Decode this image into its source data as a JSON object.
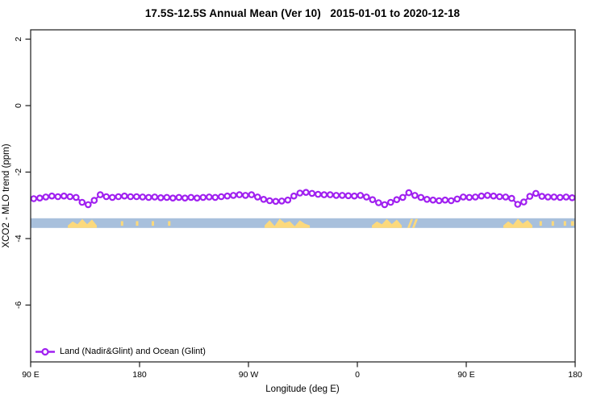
{
  "title": "17.5S-12.5S Annual Mean (Ver 10)   2015-01-01 to 2020-12-18",
  "axes": {
    "x_label": "Longitude (deg E)",
    "y_label": "XCO2 - MLO trend (ppm)"
  },
  "legend": {
    "label": "Land (Nadir&Glint) and Ocean (Glint)",
    "symbol": "open-circle-on-line",
    "color": "#a020f0"
  },
  "colors": {
    "series": "#a020f0",
    "marker_fill": "#ffffff",
    "ocean_band": "#a8c0dc",
    "land_band": "#fcd97c",
    "axis": "#1a1a1a",
    "background": "#ffffff"
  },
  "chart_data": {
    "type": "line",
    "title": "17.5S-12.5S Annual Mean (Ver 10)   2015-01-01 to 2020-12-18",
    "xlabel": "Longitude (deg E)",
    "ylabel": "XCO2 - MLO trend (ppm)",
    "xlim": [
      90,
      540
    ],
    "ylim": [
      -7.71,
      2.28
    ],
    "grid": false,
    "legend_position": "bottom-left-inside",
    "x_axis_note": "longitude axis wraps: 90E to 180, 90W, 0, 90E, 180",
    "x_ticks": [
      {
        "pos": 90,
        "label": "90 E"
      },
      {
        "pos": 180,
        "label": "180"
      },
      {
        "pos": 270,
        "label": "90 W"
      },
      {
        "pos": 360,
        "label": "0"
      },
      {
        "pos": 450,
        "label": "90 E"
      },
      {
        "pos": 540,
        "label": "180"
      }
    ],
    "y_ticks": [
      {
        "pos": 2,
        "label": "2"
      },
      {
        "pos": 0,
        "label": "0"
      },
      {
        "pos": -2,
        "label": "-2"
      },
      {
        "pos": -4,
        "label": "-4"
      },
      {
        "pos": -6,
        "label": "-6"
      }
    ],
    "series": [
      {
        "name": "Land (Nadir&Glint) and Ocean (Glint)",
        "color": "#a020f0",
        "marker": "open-circle",
        "x_start_deg": 92.5,
        "x_step_deg": 5,
        "x_deg": [
          92.5,
          97.5,
          102.5,
          107.5,
          112.5,
          117.5,
          122.5,
          127.5,
          132.5,
          137.5,
          142.5,
          147.5,
          152.5,
          157.5,
          162.5,
          167.5,
          172.5,
          177.5,
          182.5,
          187.5,
          192.5,
          197.5,
          202.5,
          207.5,
          212.5,
          217.5,
          222.5,
          227.5,
          232.5,
          237.5,
          242.5,
          247.5,
          252.5,
          257.5,
          262.5,
          267.5,
          272.5,
          277.5,
          282.5,
          287.5,
          292.5,
          297.5,
          302.5,
          307.5,
          312.5,
          317.5,
          322.5,
          327.5,
          332.5,
          337.5,
          342.5,
          347.5,
          352.5,
          357.5,
          362.5,
          367.5,
          372.5,
          377.5,
          382.5,
          387.5,
          392.5,
          397.5,
          402.5,
          407.5,
          412.5,
          417.5,
          422.5,
          427.5,
          432.5,
          437.5,
          442.5,
          447.5,
          452.5,
          457.5,
          462.5,
          467.5,
          472.5,
          477.5,
          482.5,
          487.5,
          492.5,
          497.5,
          502.5,
          507.5,
          512.5,
          517.5,
          522.5,
          527.5,
          532.5,
          537.5
        ],
        "values": [
          -2.8,
          -2.78,
          -2.75,
          -2.72,
          -2.74,
          -2.72,
          -2.74,
          -2.76,
          -2.91,
          -2.98,
          -2.85,
          -2.68,
          -2.74,
          -2.76,
          -2.74,
          -2.72,
          -2.74,
          -2.74,
          -2.75,
          -2.76,
          -2.75,
          -2.77,
          -2.76,
          -2.78,
          -2.76,
          -2.78,
          -2.76,
          -2.78,
          -2.76,
          -2.75,
          -2.76,
          -2.74,
          -2.72,
          -2.7,
          -2.68,
          -2.7,
          -2.68,
          -2.75,
          -2.82,
          -2.86,
          -2.88,
          -2.87,
          -2.84,
          -2.72,
          -2.63,
          -2.61,
          -2.64,
          -2.67,
          -2.68,
          -2.68,
          -2.7,
          -2.7,
          -2.71,
          -2.72,
          -2.7,
          -2.75,
          -2.83,
          -2.92,
          -2.98,
          -2.91,
          -2.83,
          -2.76,
          -2.62,
          -2.7,
          -2.76,
          -2.82,
          -2.84,
          -2.86,
          -2.84,
          -2.86,
          -2.81,
          -2.75,
          -2.76,
          -2.75,
          -2.72,
          -2.7,
          -2.72,
          -2.74,
          -2.75,
          -2.79,
          -2.97,
          -2.9,
          -2.73,
          -2.64,
          -2.73,
          -2.75,
          -2.75,
          -2.76,
          -2.75,
          -2.77
        ]
      }
    ],
    "map_band": {
      "description": "land/ocean strip for latitude band 17.5S-12.5S",
      "ppm_top": -3.39,
      "ppm_bottom": -3.68,
      "ocean_color": "#a8c0dc",
      "land_color": "#fcd97c",
      "land_segments": [
        {
          "from": 120.7,
          "to": 144.7,
          "style": "jagged",
          "name": "australia"
        },
        {
          "from": 164.5,
          "to": 166.5,
          "style": "speck"
        },
        {
          "from": 177.0,
          "to": 179.0,
          "style": "speck"
        },
        {
          "from": 190.0,
          "to": 192.0,
          "style": "speck"
        },
        {
          "from": 203.5,
          "to": 205.5,
          "style": "speck"
        },
        {
          "from": 283.3,
          "to": 320.7,
          "style": "jagged",
          "name": "south-america"
        },
        {
          "from": 372.0,
          "to": 396.7,
          "style": "jagged",
          "name": "africa"
        },
        {
          "from": 401.3,
          "to": 410.0,
          "style": "slash",
          "name": "madagascar"
        },
        {
          "from": 480.7,
          "to": 504.7,
          "style": "jagged",
          "name": "australia-repeat"
        },
        {
          "from": 510.5,
          "to": 512.5,
          "style": "speck"
        },
        {
          "from": 520.5,
          "to": 522.5,
          "style": "speck"
        },
        {
          "from": 530.5,
          "to": 532.5,
          "style": "speck"
        },
        {
          "from": 536.5,
          "to": 539.0,
          "style": "speck"
        }
      ]
    }
  }
}
